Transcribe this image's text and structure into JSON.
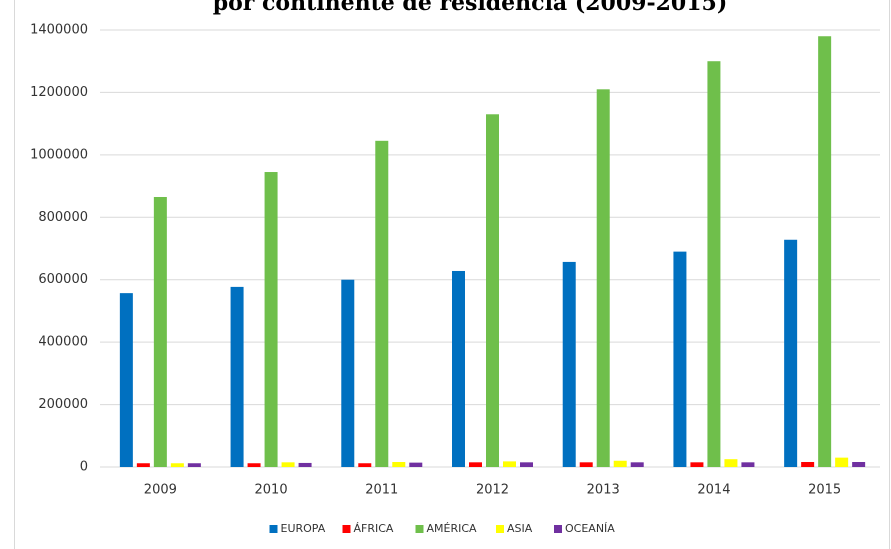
{
  "chart_data": {
    "type": "bar",
    "title": "por continente de residencia (2009-2015)",
    "categories": [
      "2009",
      "2010",
      "2011",
      "2012",
      "2013",
      "2014",
      "2015"
    ],
    "series": [
      {
        "name": "EUROPA",
        "color": "#0070c0",
        "values": [
          557000,
          577000,
          600000,
          628000,
          657000,
          690000,
          728000
        ]
      },
      {
        "name": "ÁFRICA",
        "color": "#ff0000",
        "values": [
          12000,
          12000,
          12000,
          15000,
          15000,
          15000,
          16000
        ]
      },
      {
        "name": "AMÉRICA",
        "color": "#6fbf4b",
        "values": [
          865000,
          945000,
          1045000,
          1130000,
          1210000,
          1300000,
          1380000
        ]
      },
      {
        "name": "ASIA",
        "color": "#ffff00",
        "values": [
          12000,
          15000,
          16000,
          18000,
          20000,
          25000,
          30000
        ]
      },
      {
        "name": "OCEANÍA",
        "color": "#7030a0",
        "values": [
          12000,
          13000,
          14000,
          15000,
          15000,
          15000,
          16000
        ]
      }
    ],
    "ylim": [
      0,
      1400000
    ],
    "yticks": [
      0,
      200000,
      400000,
      600000,
      800000,
      1000000,
      1200000,
      1400000
    ],
    "grid": true,
    "legend": "bottom"
  }
}
